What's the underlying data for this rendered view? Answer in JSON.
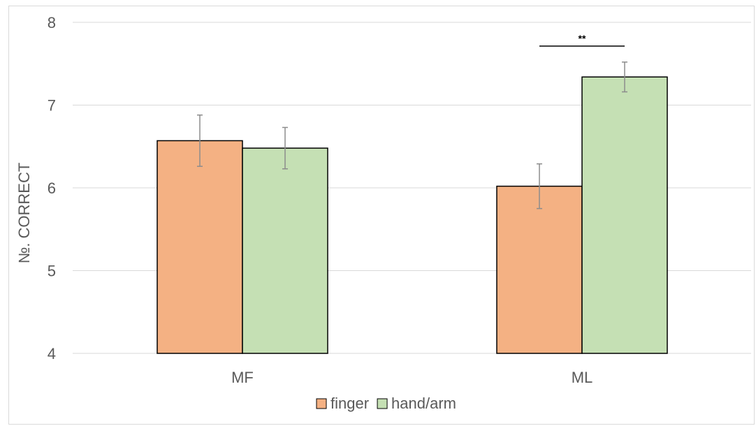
{
  "chart_data": {
    "type": "bar",
    "categories": [
      "MF",
      "ML"
    ],
    "series": [
      {
        "name": "finger",
        "values": [
          6.57,
          6.02
        ],
        "errors": [
          0.31,
          0.27
        ],
        "color": "#f4b183"
      },
      {
        "name": "hand/arm",
        "values": [
          6.48,
          7.34
        ],
        "errors": [
          0.25,
          0.18
        ],
        "color": "#c5e0b4"
      }
    ],
    "ylabel": "№. CORRECT",
    "xlabel": "",
    "ylim": [
      4,
      8
    ],
    "yticks": [
      4,
      5,
      6,
      7,
      8
    ],
    "grid": true,
    "legend_position": "bottom",
    "annotations": [
      {
        "text": "**",
        "category": "ML",
        "spans_series": [
          "finger",
          "hand/arm"
        ]
      }
    ]
  }
}
